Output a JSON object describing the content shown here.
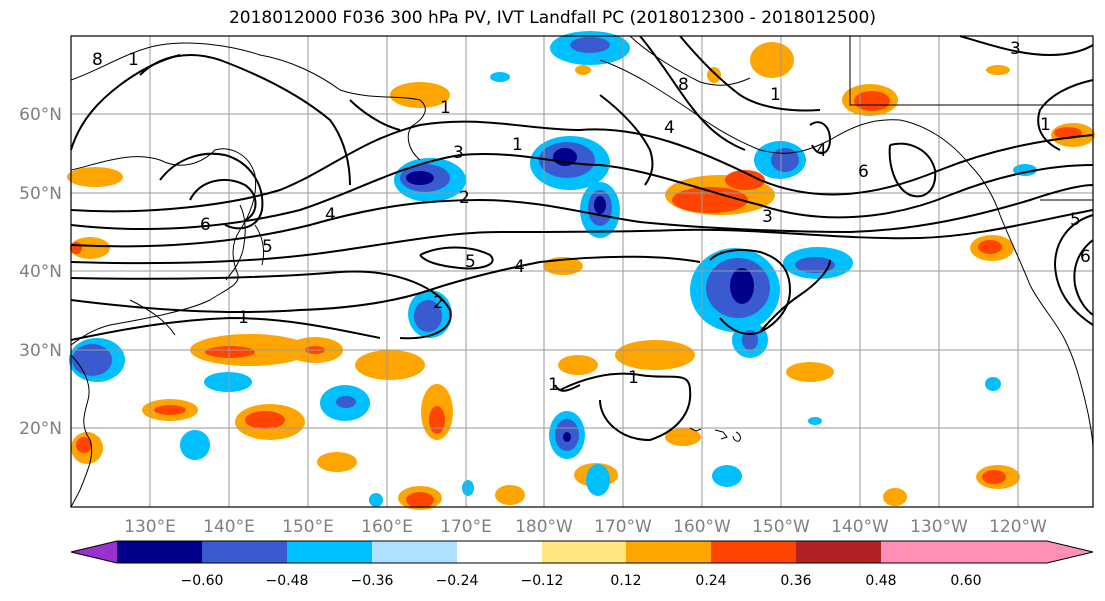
{
  "title": "2018012000 F036 300 hPa PV, IVT Landfall PC (2018012300 - 2018012500)",
  "lat_labels": [
    "60°N",
    "50°N",
    "40°N",
    "30°N",
    "20°N"
  ],
  "lon_labels": [
    "130°E",
    "140°E",
    "150°E",
    "160°E",
    "170°E",
    "180°W",
    "170°W",
    "160°W",
    "150°W",
    "140°W",
    "130°W",
    "120°W"
  ],
  "colorbar": {
    "tick_labels": [
      "−0.60",
      "−0.48",
      "−0.36",
      "−0.24",
      "−0.12",
      "0.12",
      "0.24",
      "0.36",
      "0.48",
      "0.60"
    ],
    "colors": [
      "#9932cc",
      "#00008b",
      "#3a5bd0",
      "#00bfff",
      "#b0e0ff",
      "#ffffff",
      "#ffe680",
      "#ffa500",
      "#ff4500",
      "#b22222",
      "#ff8fb4"
    ]
  },
  "contour_labels": [
    "1",
    "2",
    "3",
    "4",
    "5",
    "6",
    "8",
    "1",
    "2",
    "3",
    "4",
    "5",
    "6",
    "3",
    "1",
    "1"
  ],
  "colors": {
    "ocean": "#ffffff",
    "grid": "#9a9a9a",
    "contour": "#000000"
  }
}
